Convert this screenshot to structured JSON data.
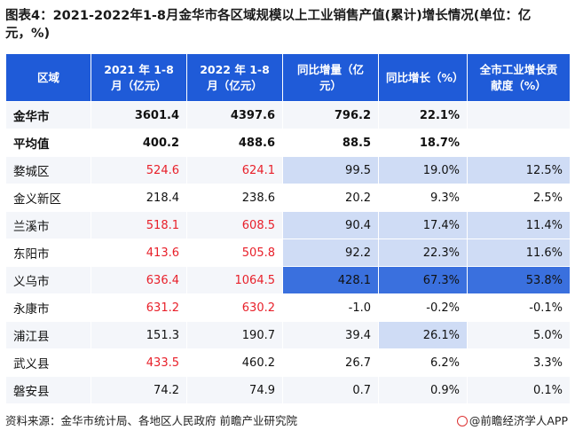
{
  "title": "图表4：2021-2022年1-8月金华市各区域规模以上工业销售产值(累计)增长情况(单位：亿元，%)",
  "table": {
    "headers": [
      "区域",
      "2021 年 1-8 月（亿元）",
      "2022 年 1-8 月（亿元）",
      "同比增量（亿元）",
      "同比增长（%）",
      "全市工业增长贡献度（%）"
    ],
    "rows": [
      [
        "金华市",
        "3601.4",
        "4397.6",
        "796.2",
        "22.1%",
        ""
      ],
      [
        "平均值",
        "400.2",
        "488.6",
        "88.5",
        "18.7%",
        ""
      ],
      [
        "婺城区",
        "524.6",
        "624.1",
        "99.5",
        "19.0%",
        "12.5%"
      ],
      [
        "金义新区",
        "218.4",
        "238.6",
        "20.2",
        "9.3%",
        "2.5%"
      ],
      [
        "兰溪市",
        "518.1",
        "608.5",
        "90.4",
        "17.4%",
        "11.4%"
      ],
      [
        "东阳市",
        "413.6",
        "505.8",
        "92.2",
        "22.3%",
        "11.6%"
      ],
      [
        "义乌市",
        "636.4",
        "1064.5",
        "428.1",
        "67.3%",
        "53.8%"
      ],
      [
        "永康市",
        "631.2",
        "630.2",
        "-1.0",
        "-0.2%",
        "-0.1%"
      ],
      [
        "浦江县",
        "151.3",
        "190.7",
        "39.4",
        "26.1%",
        "5.0%"
      ],
      [
        "武义县",
        "433.5",
        "460.2",
        "26.7",
        "6.2%",
        "3.3%"
      ],
      [
        "磐安县",
        "74.2",
        "74.9",
        "0.7",
        "0.9%",
        "0.1%"
      ]
    ]
  },
  "colors": {
    "header_bg": "#1f5bd8",
    "highlight_red": "#e8202a",
    "highlight_light_blue": "#cfdcf5",
    "highlight_strong_blue": "#3a70de"
  },
  "source": "资料来源：金华市统计局、各地区人民政府 前瞻产业研究院",
  "brand": "@前瞻经济学人APP"
}
